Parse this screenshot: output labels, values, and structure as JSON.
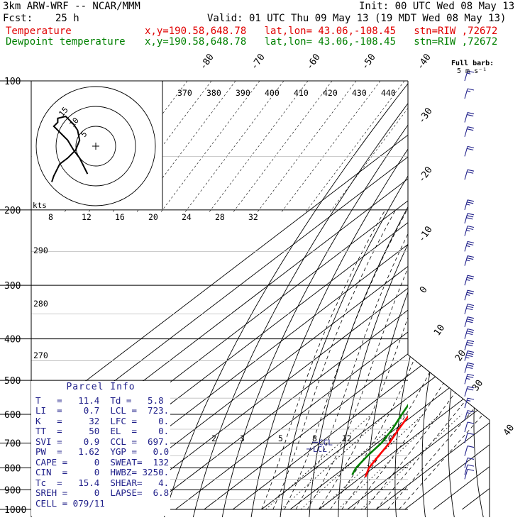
{
  "header": {
    "model": "3km ARW-WRF -- NCAR/MMM",
    "init": "Init: 00 UTC Wed 08 May 13",
    "fcst_label": "Fcst:",
    "fcst_value": "25 h",
    "valid": "Valid: 01 UTC Thu 09 May 13 (19 MDT Wed 08 May 13)",
    "temp_label": "Temperature",
    "dew_label": "Dewpoint temperature",
    "location": "x,y=190.58,648.78   lat,lon= 43.06,-108.45   stn=RIW ,72672",
    "barb_title": "Full barb:",
    "barb_units": "5 m s⁻¹"
  },
  "parcel": {
    "title": "Parcel Info",
    "rows": [
      "T   =   11.4  Td =   5.8",
      "LI  =    0.7  LCL =  723.",
      "K   =     32  LFC =    0.",
      "TT  =     50  EL  =    0.",
      "SVI =    0.9  CCL =  697.",
      "PW  =   1.62  YGP =   0.0",
      "CAPE =     0  SWEAT=  132",
      "CIN  =     0  HWBZ= 3250.",
      "Tc  =   15.4  SHEAR=   4.",
      "SREH =     0  LAPSE=  6.8",
      "CELL = 079/11"
    ]
  },
  "hodograph": {
    "units": "kts",
    "ring_labels": [
      "5",
      "10",
      "15"
    ],
    "path": [
      [
        0,
        18
      ],
      [
        1,
        15
      ],
      [
        2,
        13
      ],
      [
        3,
        11
      ],
      [
        4,
        9
      ],
      [
        8,
        6
      ],
      [
        12,
        2
      ],
      [
        14,
        -3
      ],
      [
        13,
        -8
      ],
      [
        11,
        -11
      ],
      [
        9,
        -13
      ],
      [
        7,
        -15
      ],
      [
        3,
        -14
      ],
      [
        3,
        -12
      ],
      [
        1,
        -10
      ],
      [
        3,
        -8
      ],
      [
        6,
        -5
      ],
      [
        8,
        -3
      ],
      [
        11,
        2
      ],
      [
        14,
        6
      ],
      [
        16,
        10
      ],
      [
        18,
        14
      ]
    ]
  },
  "chart_data": {
    "type": "line",
    "title": "Skew-T log-P sounding, stn=RIW ,72672",
    "ylabel": "Pressure (hPa)",
    "pressure_levels": [
      100,
      200,
      300,
      400,
      500,
      600,
      700,
      800,
      900,
      1000
    ],
    "ylim": [
      1000,
      100
    ],
    "isotherm_labels_c": [
      -80,
      -70,
      -60,
      -50,
      -40,
      -30,
      -20,
      -10,
      0,
      10,
      20,
      30,
      40
    ],
    "theta_e_labels_k": [
      370,
      380,
      390,
      400,
      410,
      420,
      430,
      440
    ],
    "mixing_ratio_top_labels": [
      8,
      12,
      16,
      20,
      24,
      28,
      32
    ],
    "mixing_ratio_low_labels": [
      2,
      3,
      5,
      8,
      12,
      20
    ],
    "dry_adiabat_labels_k": [
      290,
      280,
      270
    ],
    "markers": [
      {
        "name": "CCL",
        "p": 697
      },
      {
        "name": "LCL",
        "p": 723
      }
    ],
    "series": [
      {
        "name": "Temperature",
        "color": "#ff0000",
        "points": [
          [
            840,
            11.4
          ],
          [
            800,
            8.5
          ],
          [
            750,
            6.4
          ],
          [
            700,
            4.3
          ],
          [
            650,
            1.2
          ],
          [
            600,
            -1.8
          ],
          [
            550,
            -5.3
          ],
          [
            500,
            -9.2
          ],
          [
            450,
            -13.7
          ],
          [
            400,
            -19.8
          ],
          [
            350,
            -26.5
          ],
          [
            300,
            -34.0
          ],
          [
            270,
            -40.0
          ],
          [
            250,
            -45.0
          ],
          [
            230,
            -49.5
          ],
          [
            210,
            -53.5
          ],
          [
            190,
            -55.0
          ],
          [
            175,
            -55.5
          ],
          [
            160,
            -54.0
          ],
          [
            150,
            -52.0
          ],
          [
            140,
            -50.0
          ],
          [
            130,
            -48.5
          ],
          [
            120,
            -48.5
          ],
          [
            110,
            -49.5
          ],
          [
            100,
            -50.0
          ]
        ]
      },
      {
        "name": "Dewpoint temperature",
        "color": "#008000",
        "points": [
          [
            830,
            5.8
          ],
          [
            800,
            4.0
          ],
          [
            750,
            2.5
          ],
          [
            700,
            1.5
          ],
          [
            650,
            -1.0
          ],
          [
            600,
            -4.5
          ],
          [
            550,
            -8.0
          ],
          [
            500,
            -11.6
          ],
          [
            470,
            -13.0
          ],
          [
            450,
            -16.0
          ],
          [
            420,
            -21.0
          ],
          [
            400,
            -24.5
          ],
          [
            380,
            -29.0
          ],
          [
            350,
            -34.0
          ],
          [
            330,
            -38.0
          ],
          [
            300,
            -44.0
          ],
          [
            280,
            -51.0
          ],
          [
            260,
            -58.0
          ],
          [
            230,
            -63.0
          ],
          [
            200,
            -66.0
          ],
          [
            180,
            -69.0
          ],
          [
            160,
            -75.0
          ],
          [
            140,
            -80.0
          ],
          [
            125,
            -84.0
          ],
          [
            115,
            -86.0
          ],
          [
            105,
            -86.5
          ],
          [
            100,
            -86.0
          ]
        ]
      }
    ],
    "wind_barbs": [
      {
        "p": 100,
        "kt": 15
      },
      {
        "p": 110,
        "kt": 15
      },
      {
        "p": 125,
        "kt": 20
      },
      {
        "p": 135,
        "kt": 20
      },
      {
        "p": 150,
        "kt": 20
      },
      {
        "p": 170,
        "kt": 20
      },
      {
        "p": 200,
        "kt": 25
      },
      {
        "p": 215,
        "kt": 30
      },
      {
        "p": 230,
        "kt": 25
      },
      {
        "p": 250,
        "kt": 25
      },
      {
        "p": 270,
        "kt": 25
      },
      {
        "p": 300,
        "kt": 25
      },
      {
        "p": 325,
        "kt": 25
      },
      {
        "p": 350,
        "kt": 30
      },
      {
        "p": 375,
        "kt": 30
      },
      {
        "p": 400,
        "kt": 30
      },
      {
        "p": 425,
        "kt": 30
      },
      {
        "p": 450,
        "kt": 35
      },
      {
        "p": 480,
        "kt": 30
      },
      {
        "p": 510,
        "kt": 25
      },
      {
        "p": 545,
        "kt": 20
      },
      {
        "p": 580,
        "kt": 15
      },
      {
        "p": 620,
        "kt": 15
      },
      {
        "p": 660,
        "kt": 10
      },
      {
        "p": 700,
        "kt": 10
      },
      {
        "p": 750,
        "kt": 10
      },
      {
        "p": 800,
        "kt": 10
      },
      {
        "p": 830,
        "kt": 10
      },
      {
        "p": 850,
        "kt": 10
      }
    ]
  }
}
